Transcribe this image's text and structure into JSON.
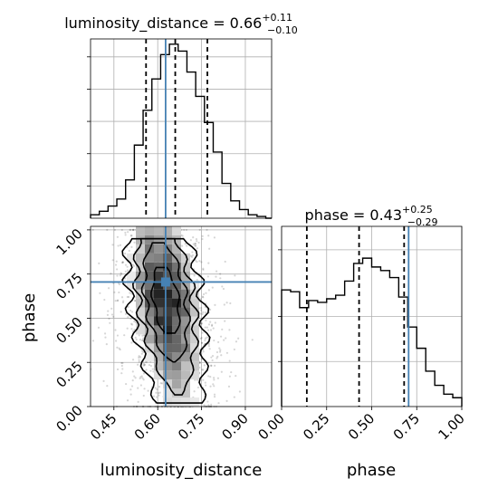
{
  "chart_data": {
    "type": "corner",
    "parameters": [
      "luminosity_distance",
      "phase"
    ],
    "truths": {
      "luminosity_distance": 0.627,
      "phase": 0.705
    },
    "marginals": [
      {
        "parameter": "luminosity_distance",
        "title_prefix": "luminosity_distance = 0.66",
        "title_sup": "+0.11",
        "title_sub": "−0.10",
        "quantiles": [
          0.56,
          0.66,
          0.77
        ],
        "xlim": [
          0.37,
          0.99
        ],
        "bin_edges": [
          0.37,
          0.4,
          0.43,
          0.46,
          0.49,
          0.52,
          0.55,
          0.58,
          0.61,
          0.64,
          0.67,
          0.7,
          0.73,
          0.76,
          0.79,
          0.82,
          0.85,
          0.88,
          0.91,
          0.94,
          0.97,
          0.99
        ],
        "counts": [
          2,
          4,
          7,
          11,
          22,
          42,
          62,
          80,
          94,
          100,
          96,
          84,
          70,
          55,
          38,
          20,
          10,
          5,
          2,
          1,
          0
        ],
        "ylim": [
          0,
          103
        ]
      },
      {
        "parameter": "phase",
        "title_prefix": "phase = 0.43",
        "title_sup": "+0.25",
        "title_sub": "−0.29",
        "quantiles": [
          0.14,
          0.43,
          0.68
        ],
        "xlim": [
          0,
          1
        ],
        "bin_edges": [
          0,
          0.05,
          0.1,
          0.15,
          0.2,
          0.25,
          0.3,
          0.35,
          0.4,
          0.45,
          0.5,
          0.55,
          0.6,
          0.65,
          0.7,
          0.75,
          0.8,
          0.85,
          0.9,
          0.95,
          1.0
        ],
        "counts": [
          66,
          65,
          56,
          60,
          59,
          61,
          63,
          71,
          81,
          84,
          79,
          77,
          73,
          62,
          45,
          33,
          20,
          12,
          7,
          5
        ],
        "ylim": [
          0,
          102
        ]
      }
    ],
    "joint": {
      "x": "luminosity_distance",
      "y": "phase",
      "xlim": [
        0.37,
        0.99
      ],
      "ylim": [
        0,
        1.02
      ],
      "contour_levels": 4
    },
    "x_ticks": {
      "luminosity_distance": [
        "0.45",
        "0.60",
        "0.75",
        "0.90"
      ],
      "phase": [
        "0.00",
        "0.25",
        "0.50",
        "0.75",
        "1.00"
      ]
    },
    "y_ticks": {
      "phase": [
        "0.00",
        "0.25",
        "0.50",
        "0.75",
        "1.00"
      ]
    },
    "xlabels": [
      "luminosity_distance",
      "phase"
    ],
    "ylabel": "phase",
    "colors": {
      "truth": "#4682b4",
      "hist": "#000000",
      "grid": "#b0b0b0",
      "density": "#000000"
    }
  }
}
